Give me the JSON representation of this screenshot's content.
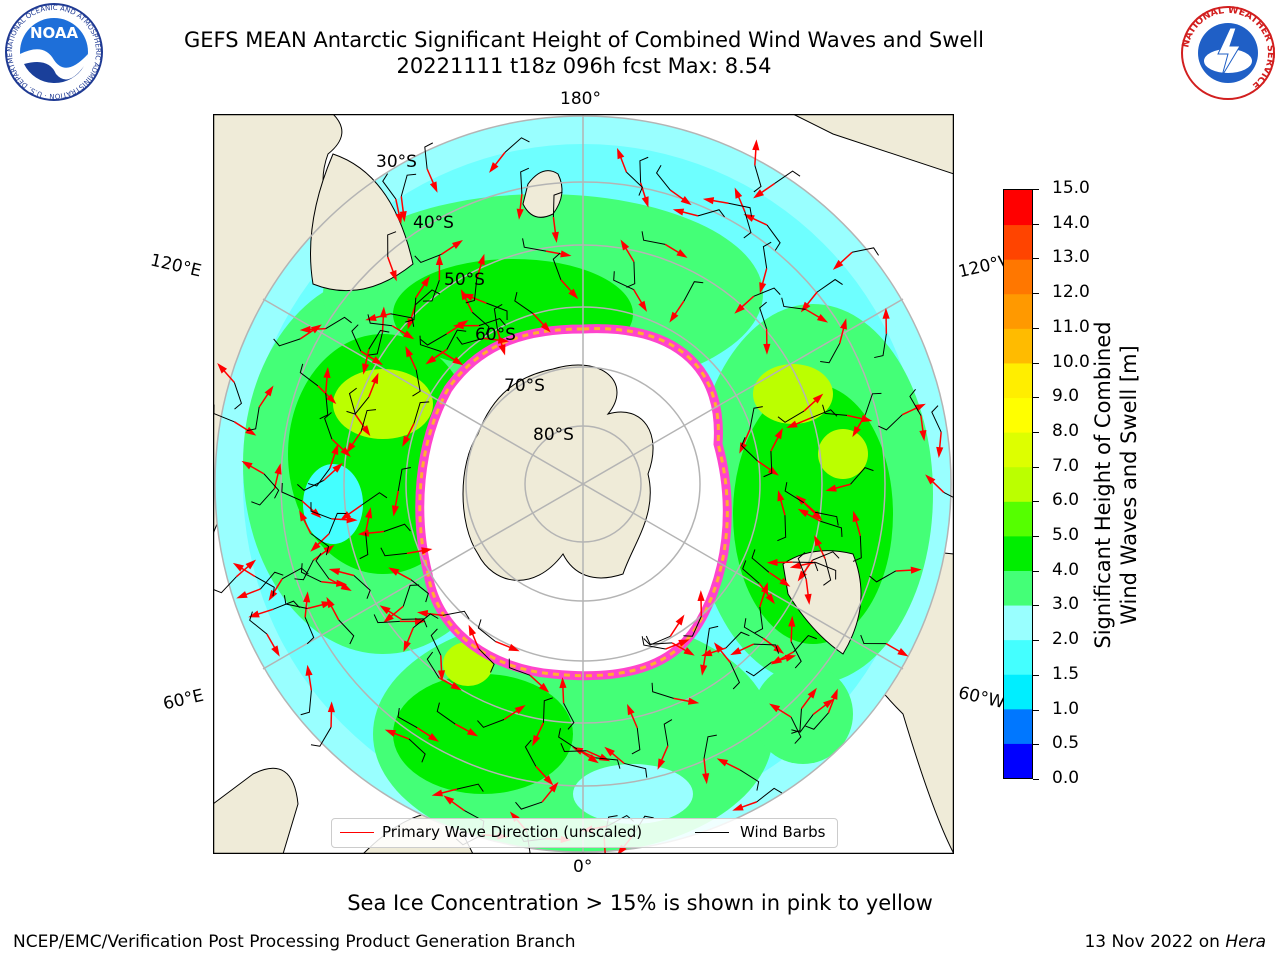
{
  "header": {
    "title_line1": "GEFS MEAN Antarctic Significant Height of Combined Wind Waves and Swell",
    "title_line2": "20221111 t18z 096h fcst   Max: 8.54"
  },
  "logos": {
    "noaa_text": "NOAA",
    "noaa_ring_text": "NATIONAL OCEANIC AND ATMOSPHERIC ADMINISTRATION · U.S. DEPARTMENT OF COMMERCE",
    "nws_ring_text": "NATIONAL WEATHER SERVICE"
  },
  "map": {
    "projection": "south-polar-stereographic",
    "longitude_labels": {
      "top": "180°",
      "bottom": "0°",
      "upper_left": "120°E",
      "upper_right": "120°W",
      "lower_left": "60°E",
      "lower_right": "60°W"
    },
    "latitude_labels": [
      "30°S",
      "40°S",
      "50°S",
      "60°S",
      "70°S",
      "80°S"
    ],
    "colors": {
      "land": "#efebd8",
      "ice": "#ffffff",
      "ice_edge_pink": "#ff44cc",
      "ice_edge_yellow": "#ffb030",
      "arrow": "#ff0000",
      "barb": "#000000",
      "graticule": "#b4b4b4"
    }
  },
  "colorbar": {
    "label_line1": "Significant Height of Combined",
    "label_line2": "Wind Waves and Swell [m]",
    "ticks": [
      "0.0",
      "0.5",
      "1.0",
      "1.5",
      "2.0",
      "3.0",
      "4.0",
      "5.0",
      "6.0",
      "7.0",
      "8.0",
      "9.0",
      "10.0",
      "11.0",
      "12.0",
      "13.0",
      "14.0",
      "15.0"
    ],
    "colors": [
      "#0000ff",
      "#0077ff",
      "#00eeff",
      "#44ffff",
      "#99ffff",
      "#44ff77",
      "#00ee00",
      "#55ff00",
      "#bbff00",
      "#ddff00",
      "#ffff00",
      "#ffee00",
      "#ffbb00",
      "#ff9900",
      "#ff7700",
      "#ff4400",
      "#ff0000"
    ]
  },
  "legend": {
    "wave_direction": "Primary Wave Direction (unscaled)",
    "wind_barbs": "Wind Barbs"
  },
  "caption": "Sea Ice Concentration > 15% is shown in pink to yellow",
  "footer": {
    "left": "NCEP/EMC/Verification Post Processing Product Generation Branch",
    "right_date": "13 Nov 2022 on ",
    "right_host": "Hera"
  }
}
